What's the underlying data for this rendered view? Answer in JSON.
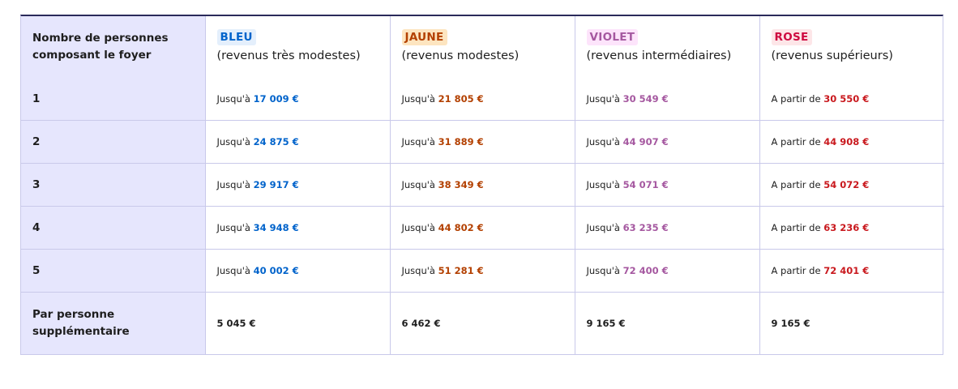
{
  "header": {
    "row_label": "Nombre de personnes composant le foyer",
    "columns": [
      {
        "badge": "BLEU",
        "subtitle": "(revenus très modestes)",
        "color": "#0063cb"
      },
      {
        "badge": "JAUNE",
        "subtitle": "(revenus modestes)",
        "color": "#b34000"
      },
      {
        "badge": "VIOLET",
        "subtitle": "(revenus intermédiaires)",
        "color": "#a558a0"
      },
      {
        "badge": "ROSE",
        "subtitle": "(revenus supérieurs)",
        "color": "#ce0a40"
      }
    ]
  },
  "rows": [
    {
      "label": "1",
      "cells": [
        {
          "prefix": "Jusqu'à",
          "amount": "17 009 €"
        },
        {
          "prefix": "Jusqu'à",
          "amount": "21 805 €"
        },
        {
          "prefix": "Jusqu'à",
          "amount": "30 549 €"
        },
        {
          "prefix": "A partir de",
          "amount": "30 550 €"
        }
      ]
    },
    {
      "label": "2",
      "cells": [
        {
          "prefix": "Jusqu'à",
          "amount": "24 875 €"
        },
        {
          "prefix": "Jusqu'à",
          "amount": "31 889 €"
        },
        {
          "prefix": "Jusqu'à",
          "amount": "44 907 €"
        },
        {
          "prefix": "A partir de",
          "amount": "44 908 €"
        }
      ]
    },
    {
      "label": "3",
      "cells": [
        {
          "prefix": "Jusqu'à",
          "amount": "29 917 €"
        },
        {
          "prefix": "Jusqu'à",
          "amount": "38 349 €"
        },
        {
          "prefix": "Jusqu'à",
          "amount": "54 071 €"
        },
        {
          "prefix": "A partir de",
          "amount": "54 072 €"
        }
      ]
    },
    {
      "label": "4",
      "cells": [
        {
          "prefix": "Jusqu'à",
          "amount": "34 948 €"
        },
        {
          "prefix": "Jusqu'à",
          "amount": "44 802 €"
        },
        {
          "prefix": "Jusqu'à",
          "amount": "63 235 €"
        },
        {
          "prefix": "A partir de",
          "amount": "63 236 €"
        }
      ]
    },
    {
      "label": "5",
      "cells": [
        {
          "prefix": "Jusqu'à",
          "amount": "40 002 €"
        },
        {
          "prefix": "Jusqu'à",
          "amount": "51 281 €"
        },
        {
          "prefix": "Jusqu'à",
          "amount": "72 400 €"
        },
        {
          "prefix": "A partir de",
          "amount": "72 401 €"
        }
      ]
    }
  ],
  "extra_row": {
    "label": "Par personne supplémentaire",
    "cells": [
      "5 045 €",
      "6 462 €",
      "9 165 €",
      "9 165 €"
    ]
  }
}
